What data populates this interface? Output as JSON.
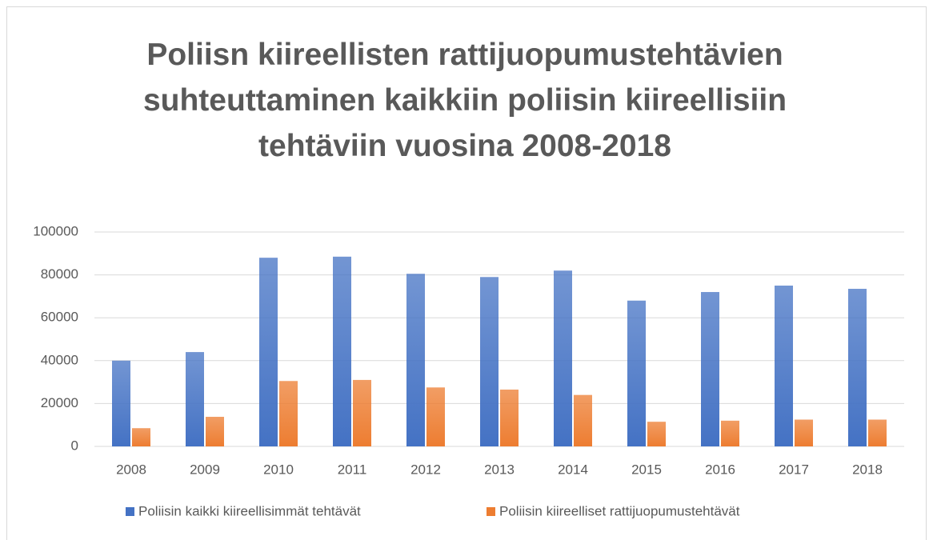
{
  "chart_data": {
    "type": "bar",
    "title": "Poliisn kiireellisten rattijuopumustehtävien suhteuttaminen kaikkiin poliisin kiireellisiin tehtäviin vuosina 2008-2018",
    "categories": [
      "2008",
      "2009",
      "2010",
      "2011",
      "2012",
      "2013",
      "2014",
      "2015",
      "2016",
      "2017",
      "2018"
    ],
    "series": [
      {
        "name": "Poliisin kaikki kiireellisimmät tehtävät",
        "color": "#4472c4",
        "values": [
          40000,
          44000,
          88000,
          88500,
          80500,
          79000,
          82000,
          68000,
          72000,
          75000,
          73500
        ]
      },
      {
        "name": "Poliisin kiireelliset rattijuopumustehtävät",
        "color": "#ed7d31",
        "values": [
          8500,
          13800,
          30500,
          31000,
          27500,
          26500,
          24000,
          11500,
          12000,
          12500,
          12500
        ]
      }
    ],
    "ylim": [
      0,
      100000
    ],
    "yticks": [
      0,
      20000,
      40000,
      60000,
      80000,
      100000
    ],
    "grid": true,
    "legend": "bottom"
  }
}
